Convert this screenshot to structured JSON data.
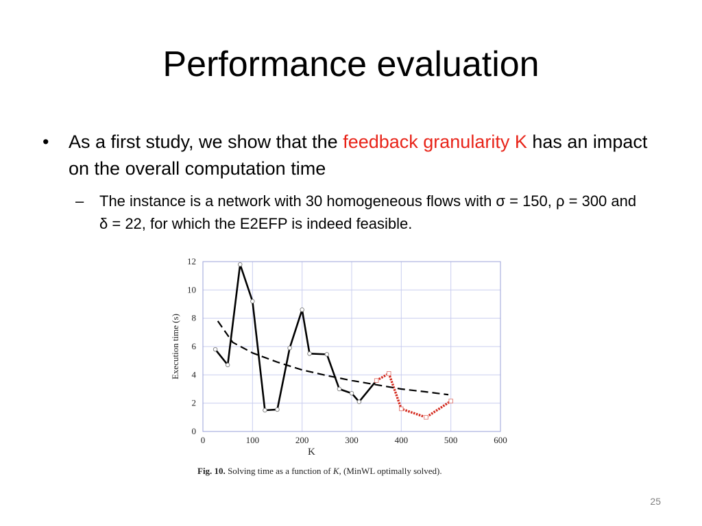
{
  "slide": {
    "title": "Performance evaluation",
    "bullet1": {
      "bullet_char": "•",
      "text_before": "As a first study, we show that the ",
      "highlight": "feedback granularity K",
      "text_after": " has an impact on the overall computation time",
      "highlight_color": "#e82318"
    },
    "bullet2": {
      "bullet_char": "–",
      "text": "The instance is a network with 30 homogeneous flows with σ = 150, ρ = 300 and δ = 22, for which the E2EFP is indeed feasible."
    },
    "caption": {
      "label": "Fig. 10.",
      "text_before": "Solving time as a function of ",
      "italic": "K",
      "text_after": ", (MinWL optimally solved)."
    },
    "page_number": "25"
  },
  "chart_data": {
    "type": "line",
    "title": "",
    "xlabel": "K",
    "ylabel": "Execution time (s)",
    "xlim": [
      0,
      600
    ],
    "ylim": [
      0,
      12
    ],
    "xticks": [
      0,
      100,
      200,
      300,
      400,
      500,
      600
    ],
    "yticks": [
      0,
      2,
      4,
      6,
      8,
      10,
      12
    ],
    "grid": true,
    "series": [
      {
        "style": "solid",
        "color": "#000000",
        "marker": "circle",
        "x": [
          25,
          50,
          75,
          100,
          125,
          150,
          175,
          200,
          215,
          250,
          275,
          300,
          315,
          350
        ],
        "y": [
          5.8,
          4.7,
          11.8,
          9.2,
          1.5,
          1.55,
          5.9,
          8.6,
          5.5,
          5.45,
          3.0,
          2.7,
          2.1,
          3.6
        ]
      },
      {
        "style": "dotted",
        "color": "#d42a1e",
        "marker": "square",
        "x": [
          350,
          375,
          400,
          450,
          500
        ],
        "y": [
          3.6,
          4.1,
          1.6,
          1.0,
          2.15
        ]
      },
      {
        "style": "dashed",
        "color": "#000000",
        "marker": "none",
        "x": [
          30,
          60,
          100,
          150,
          200,
          250,
          300,
          350,
          400,
          450,
          495
        ],
        "y": [
          7.8,
          6.3,
          5.55,
          4.9,
          4.35,
          3.95,
          3.6,
          3.3,
          3.0,
          2.8,
          2.6
        ]
      }
    ]
  }
}
